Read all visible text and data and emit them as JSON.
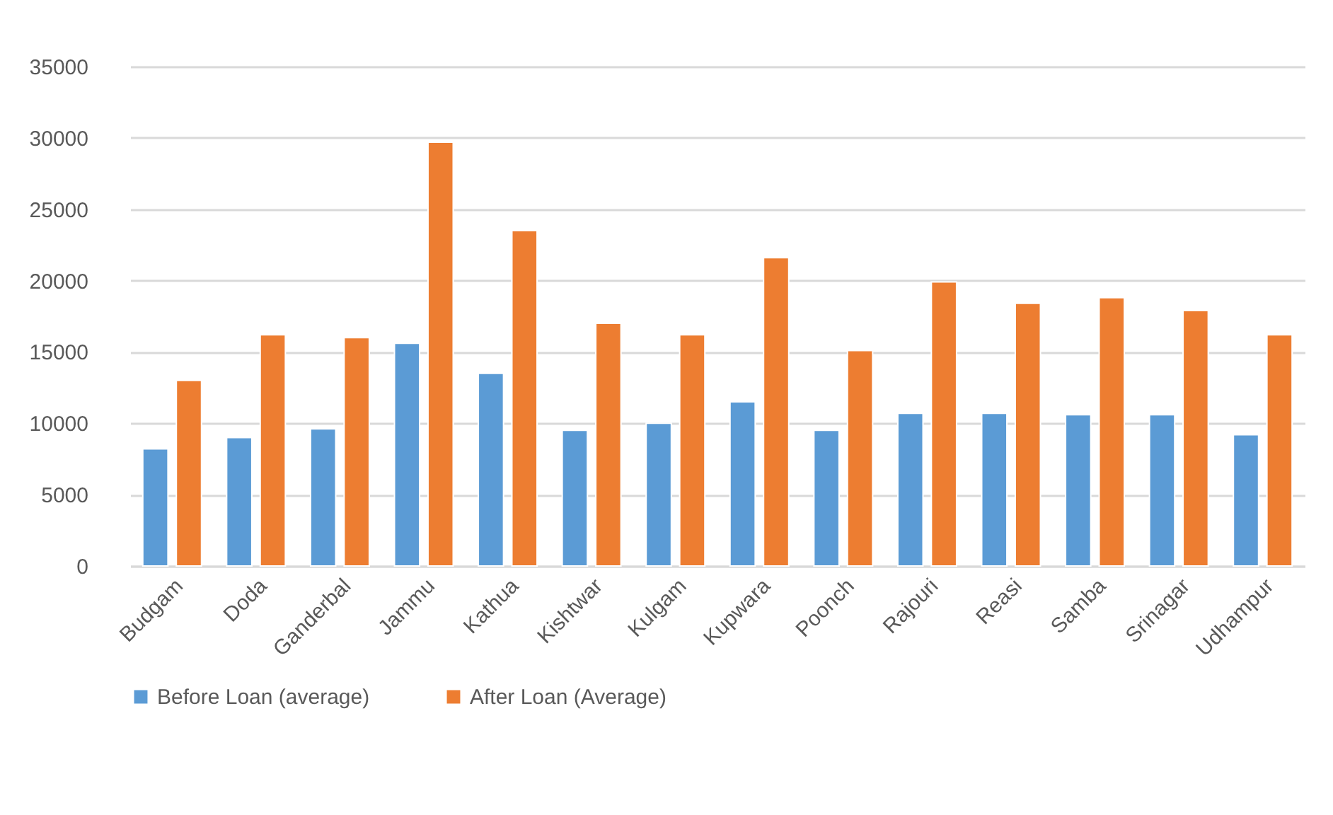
{
  "chart_data": {
    "type": "bar",
    "categories": [
      "Budgam",
      "Doda",
      "Ganderbal",
      "Jammu",
      "Kathua",
      "Kishtwar",
      "Kulgam",
      "Kupwara",
      "Poonch",
      "Rajouri",
      "Reasi",
      "Samba",
      "Srinagar",
      "Udhampur"
    ],
    "series": [
      {
        "name": "Before Loan (average)",
        "color": "#5b9bd5",
        "values": [
          8200,
          9000,
          9600,
          15600,
          13500,
          9500,
          10000,
          11500,
          9500,
          10700,
          10700,
          10600,
          10600,
          9200
        ]
      },
      {
        "name": "After Loan (Average)",
        "color": "#ed7d31",
        "values": [
          13000,
          16200,
          16000,
          29700,
          23500,
          17000,
          16200,
          21600,
          15100,
          19900,
          18400,
          18800,
          17900,
          16200
        ]
      }
    ],
    "ylim": [
      0,
      35000
    ],
    "yticks": [
      0,
      5000,
      10000,
      15000,
      20000,
      25000,
      30000,
      35000
    ],
    "grid": "y",
    "legend": "bottom"
  }
}
